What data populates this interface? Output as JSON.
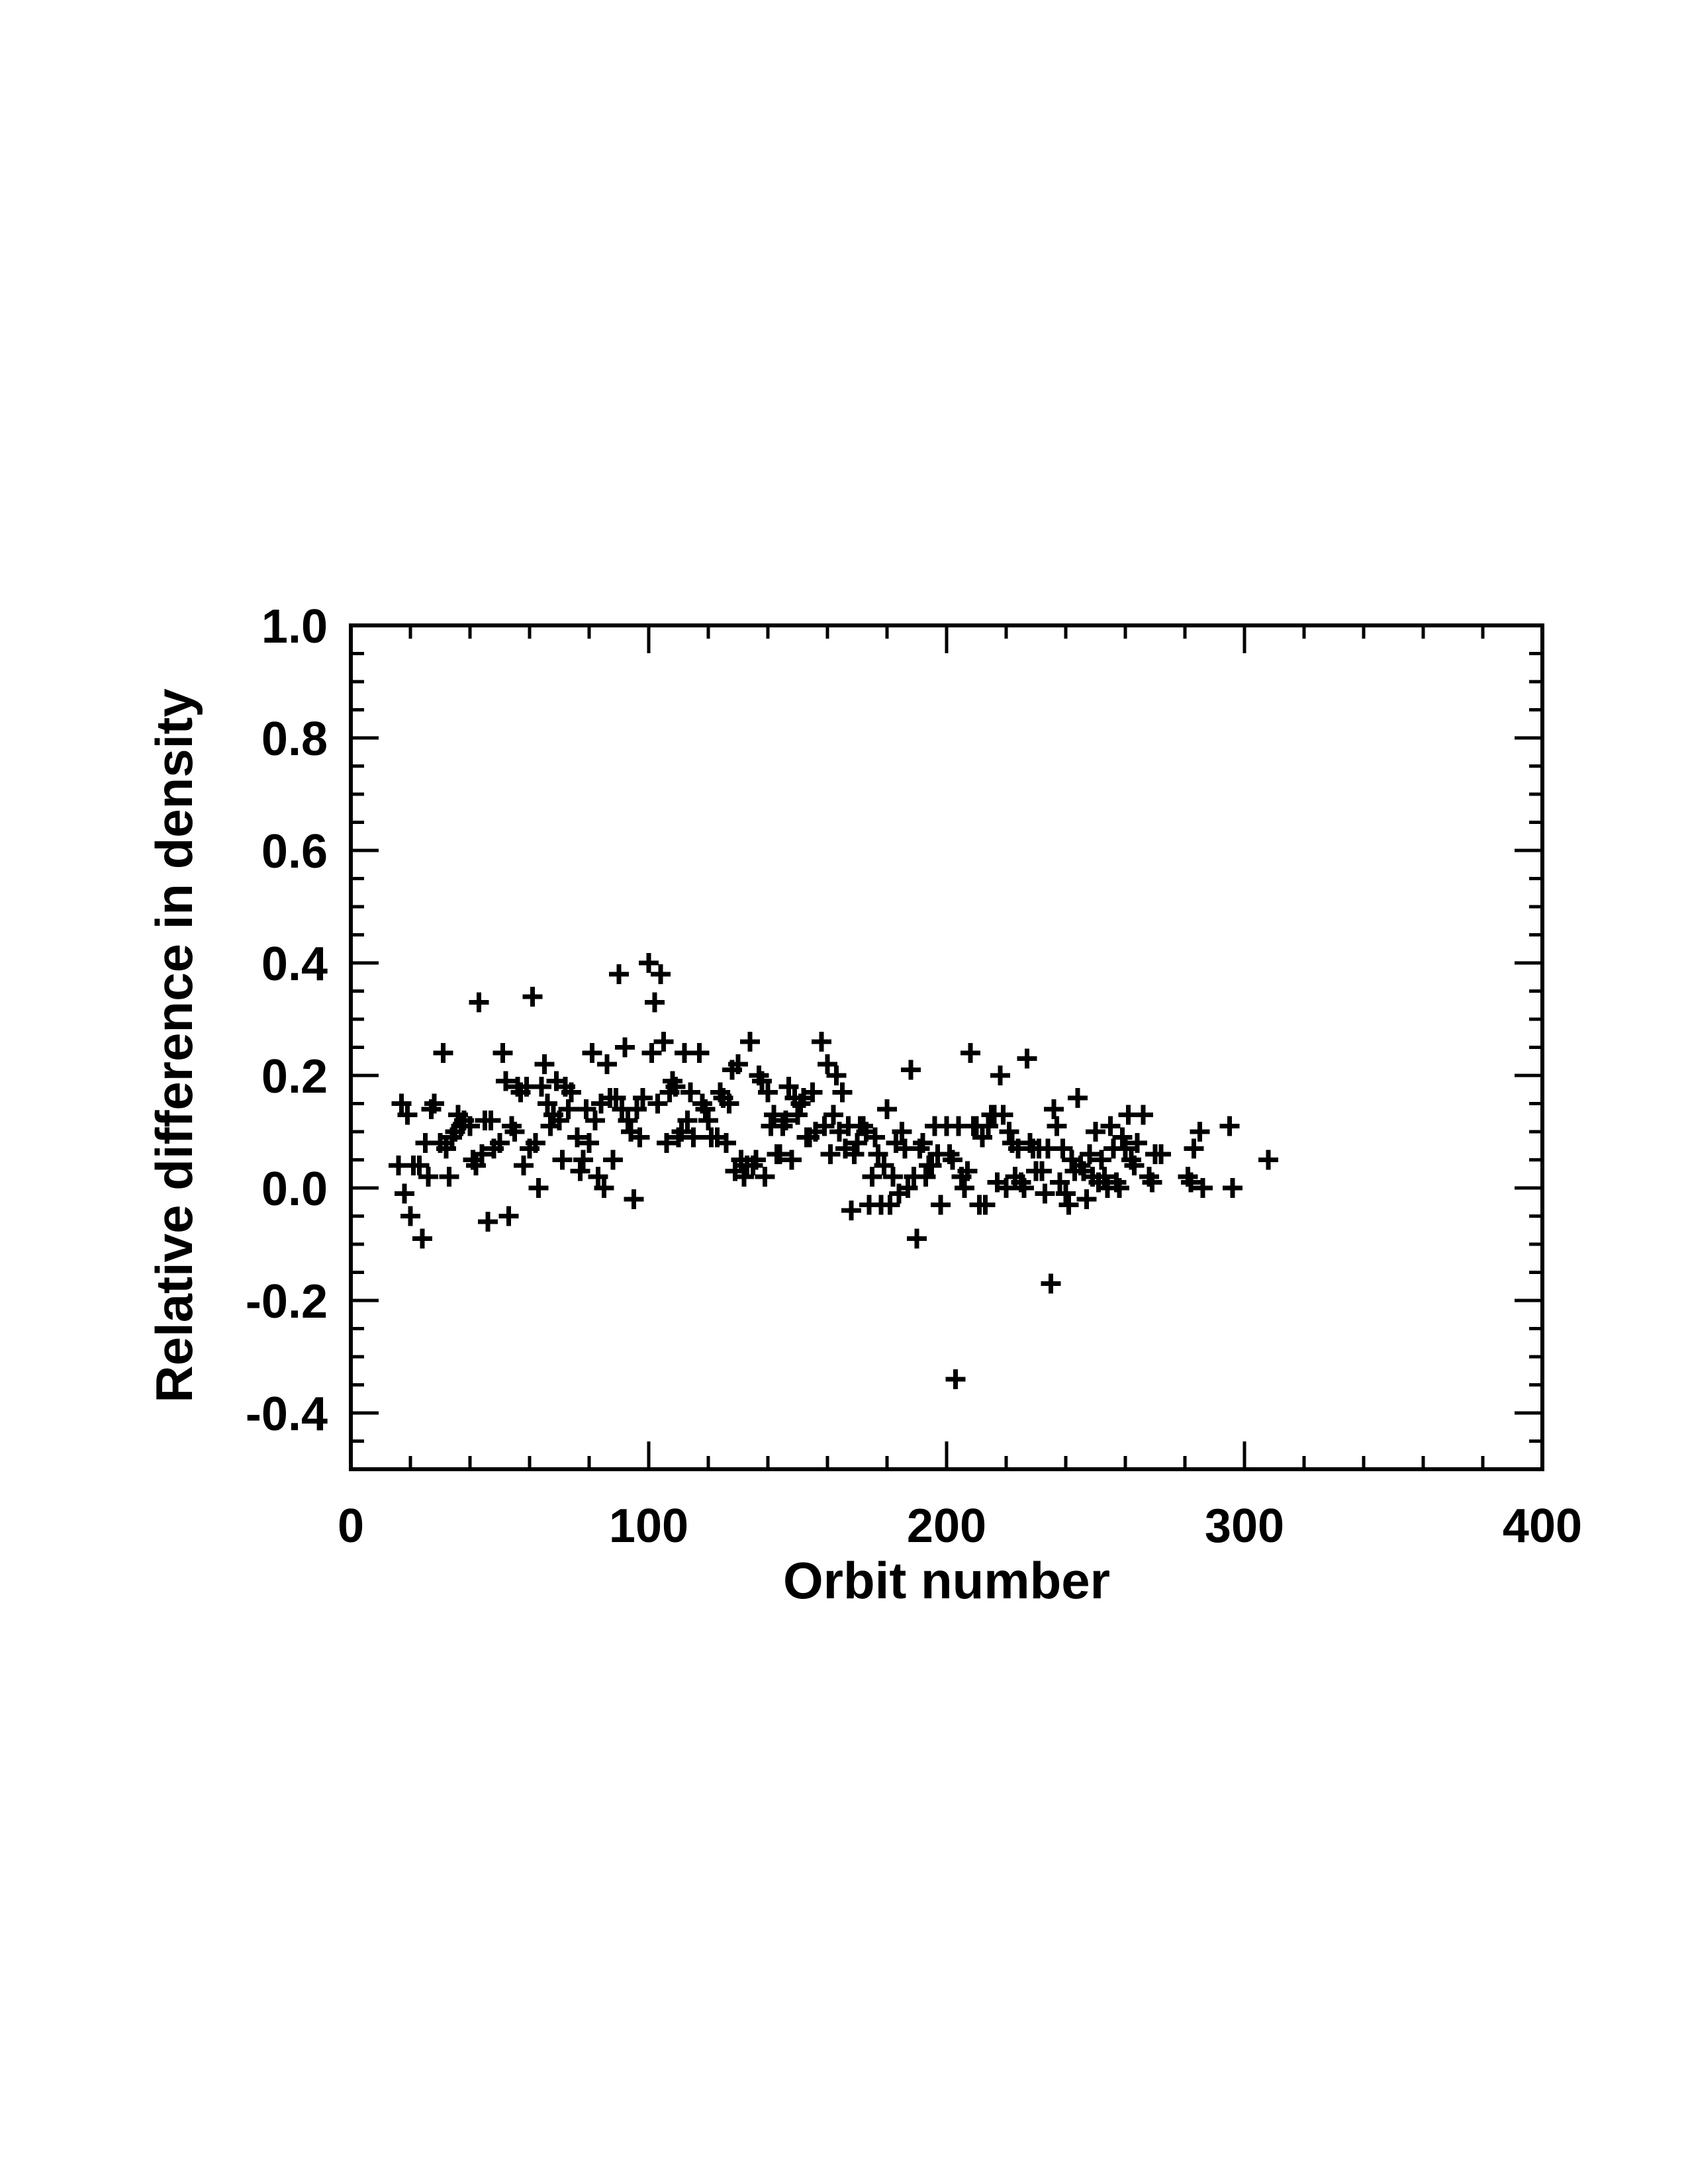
{
  "chart_data": {
    "type": "scatter",
    "marker": "plus",
    "xlabel": "Orbit number",
    "ylabel": "Relative difference in density",
    "xlim": [
      0,
      400
    ],
    "ylim": [
      -0.5,
      1.0
    ],
    "xticks": [
      0,
      100,
      200,
      300,
      400
    ],
    "xtick_labels": [
      "0",
      "100",
      "200",
      "300",
      "400"
    ],
    "yticks": [
      -0.4,
      -0.2,
      0.0,
      0.2,
      0.4,
      0.6,
      0.8,
      1.0
    ],
    "ytick_labels": [
      "-0.4",
      "-0.2",
      "0.0",
      "0.2",
      "0.4",
      "0.6",
      "0.8",
      "1.0"
    ],
    "grid": false,
    "points": [
      [
        16,
        0.04
      ],
      [
        17,
        0.15
      ],
      [
        18,
        -0.01
      ],
      [
        19,
        0.13
      ],
      [
        20,
        -0.05
      ],
      [
        21,
        0.04
      ],
      [
        23,
        0.04
      ],
      [
        24,
        -0.09
      ],
      [
        25,
        0.08
      ],
      [
        26,
        0.02
      ],
      [
        27,
        0.14
      ],
      [
        28,
        0.15
      ],
      [
        30,
        0.08
      ],
      [
        31,
        0.24
      ],
      [
        32,
        0.07
      ],
      [
        33,
        0.02
      ],
      [
        34,
        0.09
      ],
      [
        35,
        0.1
      ],
      [
        36,
        0.13
      ],
      [
        37,
        0.11
      ],
      [
        38,
        0.12
      ],
      [
        40,
        0.11
      ],
      [
        41,
        0.05
      ],
      [
        42,
        0.04
      ],
      [
        43,
        0.33
      ],
      [
        44,
        0.06
      ],
      [
        45,
        0.12
      ],
      [
        46,
        -0.06
      ],
      [
        47,
        0.12
      ],
      [
        48,
        0.07
      ],
      [
        50,
        0.08
      ],
      [
        51,
        0.24
      ],
      [
        52,
        0.19
      ],
      [
        53,
        -0.05
      ],
      [
        54,
        0.11
      ],
      [
        55,
        0.1
      ],
      [
        56,
        0.18
      ],
      [
        57,
        0.17
      ],
      [
        58,
        0.04
      ],
      [
        59,
        0.18
      ],
      [
        60,
        0.07
      ],
      [
        61,
        0.34
      ],
      [
        62,
        0.08
      ],
      [
        63,
        0.0
      ],
      [
        64,
        0.18
      ],
      [
        65,
        0.22
      ],
      [
        66,
        0.15
      ],
      [
        67,
        0.11
      ],
      [
        68,
        0.13
      ],
      [
        69,
        0.19
      ],
      [
        70,
        0.12
      ],
      [
        71,
        0.05
      ],
      [
        72,
        0.18
      ],
      [
        73,
        0.14
      ],
      [
        74,
        0.17
      ],
      [
        76,
        0.09
      ],
      [
        77,
        0.03
      ],
      [
        78,
        0.05
      ],
      [
        79,
        0.14
      ],
      [
        80,
        0.08
      ],
      [
        81,
        0.24
      ],
      [
        82,
        0.12
      ],
      [
        83,
        0.02
      ],
      [
        84,
        0.15
      ],
      [
        85,
        0.0
      ],
      [
        86,
        0.22
      ],
      [
        87,
        0.16
      ],
      [
        88,
        0.05
      ],
      [
        89,
        0.16
      ],
      [
        90,
        0.38
      ],
      [
        91,
        0.14
      ],
      [
        92,
        0.25
      ],
      [
        93,
        0.12
      ],
      [
        94,
        0.1
      ],
      [
        95,
        -0.02
      ],
      [
        96,
        0.14
      ],
      [
        97,
        0.09
      ],
      [
        98,
        0.16
      ],
      [
        100,
        0.4
      ],
      [
        101,
        0.24
      ],
      [
        102,
        0.33
      ],
      [
        103,
        0.15
      ],
      [
        104,
        0.38
      ],
      [
        105,
        0.26
      ],
      [
        106,
        0.08
      ],
      [
        107,
        0.17
      ],
      [
        108,
        0.19
      ],
      [
        109,
        0.18
      ],
      [
        110,
        0.09
      ],
      [
        111,
        0.1
      ],
      [
        112,
        0.24
      ],
      [
        113,
        0.12
      ],
      [
        114,
        0.17
      ],
      [
        115,
        0.09
      ],
      [
        117,
        0.24
      ],
      [
        118,
        0.15
      ],
      [
        119,
        0.14
      ],
      [
        120,
        0.12
      ],
      [
        121,
        0.09
      ],
      [
        123,
        0.09
      ],
      [
        124,
        0.17
      ],
      [
        125,
        0.16
      ],
      [
        126,
        0.08
      ],
      [
        127,
        0.15
      ],
      [
        128,
        0.21
      ],
      [
        129,
        0.03
      ],
      [
        130,
        0.22
      ],
      [
        131,
        0.05
      ],
      [
        132,
        0.02
      ],
      [
        133,
        0.04
      ],
      [
        134,
        0.26
      ],
      [
        135,
        0.04
      ],
      [
        136,
        0.05
      ],
      [
        137,
        0.2
      ],
      [
        138,
        0.19
      ],
      [
        139,
        0.02
      ],
      [
        140,
        0.17
      ],
      [
        141,
        0.11
      ],
      [
        142,
        0.13
      ],
      [
        143,
        0.06
      ],
      [
        144,
        0.06
      ],
      [
        145,
        0.11
      ],
      [
        146,
        0.12
      ],
      [
        147,
        0.18
      ],
      [
        148,
        0.05
      ],
      [
        149,
        0.16
      ],
      [
        150,
        0.13
      ],
      [
        151,
        0.15
      ],
      [
        152,
        0.16
      ],
      [
        153,
        0.09
      ],
      [
        154,
        0.09
      ],
      [
        155,
        0.17
      ],
      [
        156,
        0.1
      ],
      [
        158,
        0.26
      ],
      [
        159,
        0.11
      ],
      [
        160,
        0.22
      ],
      [
        161,
        0.06
      ],
      [
        162,
        0.13
      ],
      [
        163,
        0.2
      ],
      [
        164,
        0.1
      ],
      [
        165,
        0.17
      ],
      [
        166,
        0.07
      ],
      [
        167,
        0.11
      ],
      [
        168,
        -0.04
      ],
      [
        169,
        0.06
      ],
      [
        170,
        0.08
      ],
      [
        171,
        0.11
      ],
      [
        172,
        0.11
      ],
      [
        173,
        0.1
      ],
      [
        174,
        -0.03
      ],
      [
        175,
        0.02
      ],
      [
        176,
        0.09
      ],
      [
        177,
        0.06
      ],
      [
        178,
        -0.03
      ],
      [
        179,
        0.04
      ],
      [
        180,
        0.14
      ],
      [
        181,
        -0.03
      ],
      [
        182,
        0.02
      ],
      [
        183,
        0.08
      ],
      [
        184,
        -0.01
      ],
      [
        185,
        0.1
      ],
      [
        186,
        0.07
      ],
      [
        187,
        0.0
      ],
      [
        188,
        0.21
      ],
      [
        189,
        0.02
      ],
      [
        190,
        -0.09
      ],
      [
        191,
        0.07
      ],
      [
        192,
        0.08
      ],
      [
        193,
        0.02
      ],
      [
        194,
        0.04
      ],
      [
        195,
        0.04
      ],
      [
        196,
        0.11
      ],
      [
        197,
        0.06
      ],
      [
        198,
        -0.03
      ],
      [
        200,
        0.11
      ],
      [
        201,
        0.06
      ],
      [
        202,
        0.05
      ],
      [
        203,
        -0.34
      ],
      [
        204,
        0.11
      ],
      [
        205,
        0.02
      ],
      [
        206,
        0.0
      ],
      [
        207,
        0.03
      ],
      [
        208,
        0.24
      ],
      [
        209,
        0.11
      ],
      [
        210,
        0.11
      ],
      [
        211,
        -0.03
      ],
      [
        212,
        0.09
      ],
      [
        213,
        -0.03
      ],
      [
        214,
        0.11
      ],
      [
        215,
        0.13
      ],
      [
        216,
        0.13
      ],
      [
        217,
        0.01
      ],
      [
        218,
        0.2
      ],
      [
        219,
        0.13
      ],
      [
        220,
        0.0
      ],
      [
        221,
        0.1
      ],
      [
        222,
        0.08
      ],
      [
        223,
        0.02
      ],
      [
        224,
        0.07
      ],
      [
        225,
        0.01
      ],
      [
        226,
        0.0
      ],
      [
        227,
        0.23
      ],
      [
        228,
        0.08
      ],
      [
        229,
        0.07
      ],
      [
        230,
        0.03
      ],
      [
        231,
        0.07
      ],
      [
        232,
        0.03
      ],
      [
        233,
        -0.01
      ],
      [
        234,
        0.07
      ],
      [
        235,
        -0.17
      ],
      [
        236,
        0.14
      ],
      [
        237,
        0.11
      ],
      [
        238,
        0.01
      ],
      [
        239,
        0.07
      ],
      [
        240,
        -0.01
      ],
      [
        241,
        -0.03
      ],
      [
        242,
        0.05
      ],
      [
        243,
        0.03
      ],
      [
        244,
        0.16
      ],
      [
        245,
        0.04
      ],
      [
        246,
        0.03
      ],
      [
        247,
        -0.02
      ],
      [
        248,
        0.06
      ],
      [
        249,
        0.02
      ],
      [
        250,
        0.1
      ],
      [
        251,
        0.01
      ],
      [
        252,
        0.05
      ],
      [
        253,
        0.02
      ],
      [
        254,
        0.0
      ],
      [
        255,
        0.11
      ],
      [
        256,
        0.07
      ],
      [
        257,
        0.01
      ],
      [
        258,
        0.0
      ],
      [
        259,
        0.09
      ],
      [
        260,
        0.07
      ],
      [
        261,
        0.13
      ],
      [
        262,
        0.05
      ],
      [
        263,
        0.04
      ],
      [
        264,
        0.08
      ],
      [
        266,
        0.13
      ],
      [
        268,
        0.02
      ],
      [
        269,
        0.01
      ],
      [
        270,
        0.06
      ],
      [
        272,
        0.06
      ],
      [
        281,
        0.02
      ],
      [
        282,
        0.01
      ],
      [
        283,
        0.07
      ],
      [
        285,
        0.1
      ],
      [
        286,
        0.0
      ],
      [
        295,
        0.11
      ],
      [
        296,
        0.0
      ],
      [
        308,
        0.05
      ]
    ]
  }
}
